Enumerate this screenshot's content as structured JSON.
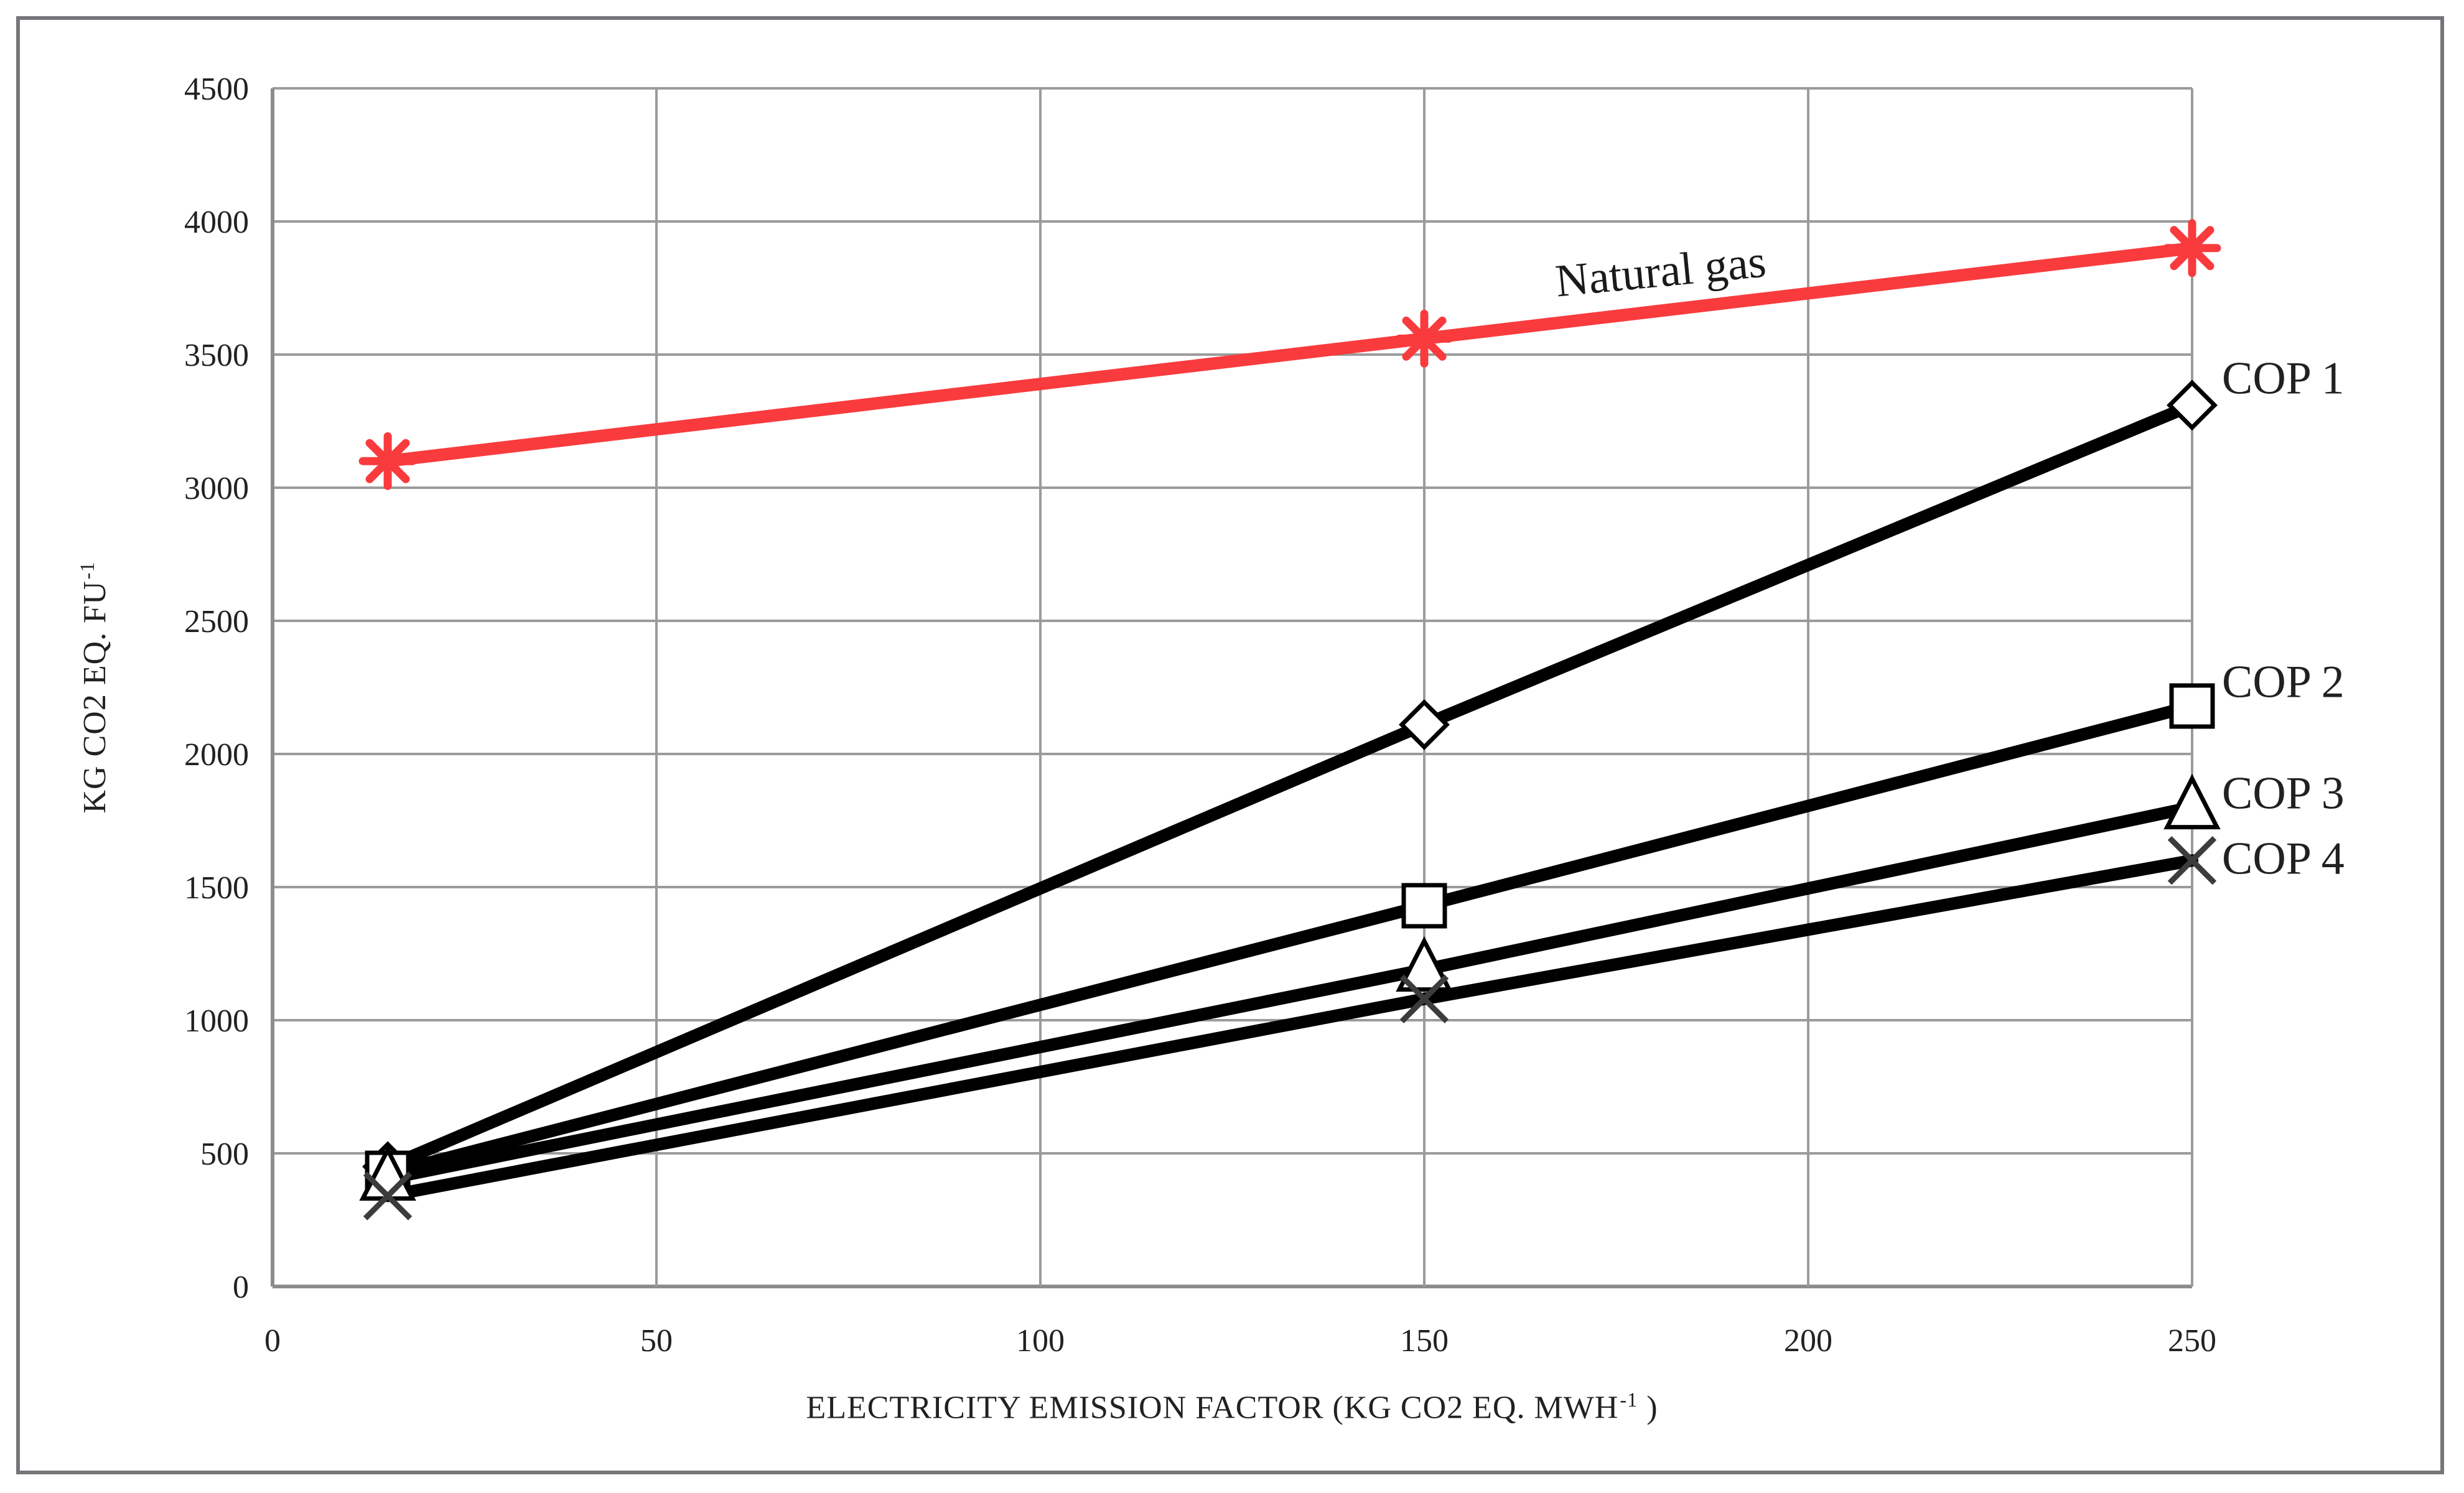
{
  "figure": {
    "background": "#ffffff",
    "border_color": "#75767a"
  },
  "chart_data": {
    "type": "line",
    "title": "",
    "xlabel_main": "ELECTRICITY EMISSION FACTOR (KG CO2 EQ. MWH",
    "xlabel_sup": "-1",
    "xlabel_post": " )",
    "ylabel_main": "KG CO2 EQ. FU",
    "ylabel_sup": "-1",
    "x": [
      15,
      150,
      250
    ],
    "xlim": [
      0,
      250
    ],
    "ylim": [
      0,
      4500
    ],
    "x_ticks": [
      0,
      50,
      100,
      150,
      200,
      250
    ],
    "y_ticks": [
      0,
      500,
      1000,
      1500,
      2000,
      2500,
      3000,
      3500,
      4000,
      4500
    ],
    "grid": true,
    "legend_position": "labels-at-line-ends",
    "colors": {
      "grid": "#9b9b9b",
      "axis": "#8c8c8c",
      "text": "#212121",
      "natural_gas_red": "#f93b3d",
      "series_black": "#000000"
    },
    "series": [
      {
        "name": "Natural gas",
        "marker": "asterisk",
        "color": "#f93b3d",
        "values": [
          3100,
          3560,
          3900
        ],
        "label_placement": "above-line"
      },
      {
        "name": "COP 1",
        "marker": "diamond",
        "color": "#000000",
        "values": [
          450,
          2110,
          3310
        ],
        "label_placement": "right"
      },
      {
        "name": "COP 2",
        "marker": "square",
        "color": "#000000",
        "values": [
          425,
          1430,
          2180
        ],
        "label_placement": "right"
      },
      {
        "name": "COP 3",
        "marker": "triangle",
        "color": "#000000",
        "values": [
          405,
          1190,
          1800
        ],
        "label_placement": "right"
      },
      {
        "name": "COP 4",
        "marker": "x",
        "color": "#000000",
        "values": [
          340,
          1080,
          1600
        ],
        "label_placement": "right"
      }
    ]
  }
}
